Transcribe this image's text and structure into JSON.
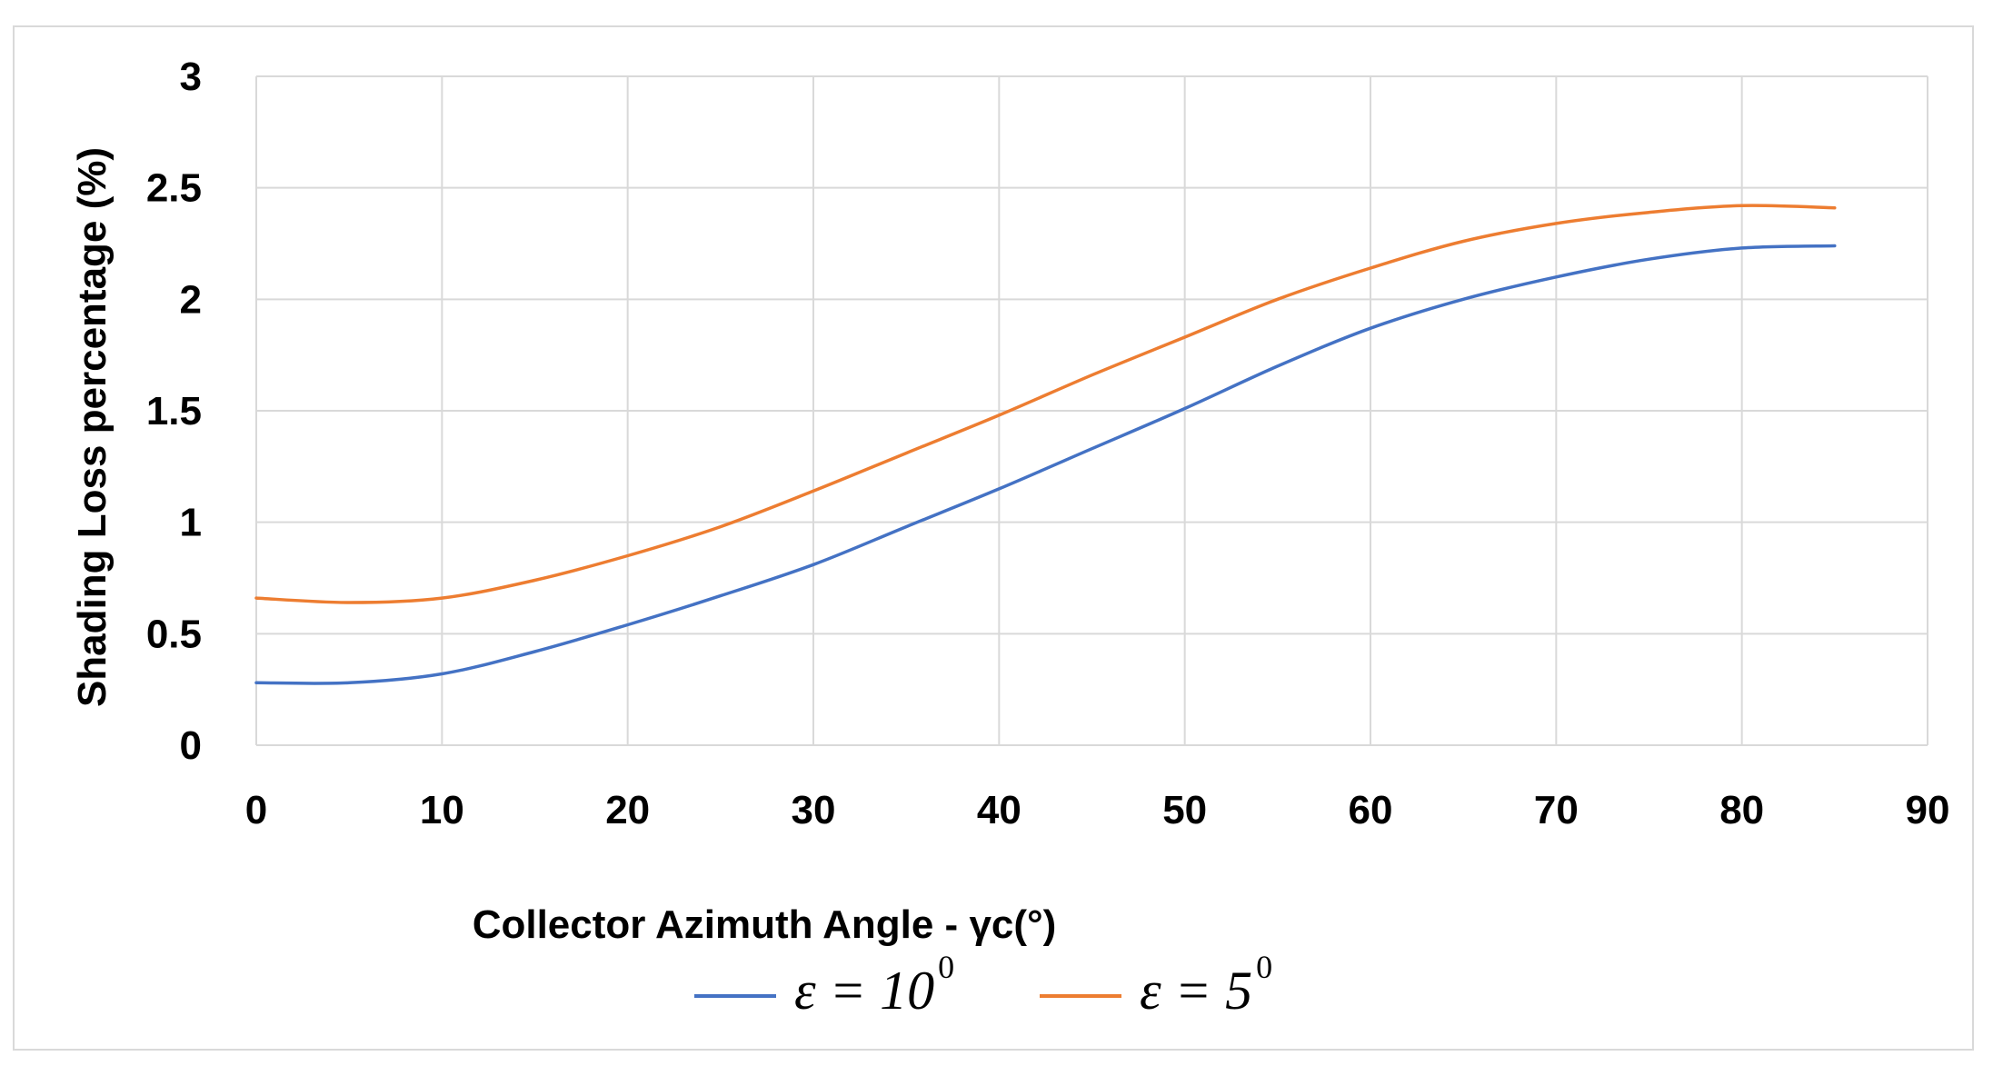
{
  "chart_data": {
    "type": "line",
    "title": "",
    "xlabel": "Collector Azimuth Angle - γc(°)",
    "ylabel": "Shading Loss percentage (%)",
    "xlim": [
      0,
      90
    ],
    "ylim": [
      0,
      3
    ],
    "x_ticks": [
      "0",
      "10",
      "20",
      "30",
      "40",
      "50",
      "60",
      "70",
      "80",
      "90"
    ],
    "y_ticks": [
      "0",
      "0.5",
      "1",
      "1.5",
      "2",
      "2.5",
      "3"
    ],
    "grid": true,
    "legend_position": "bottom",
    "x": [
      0,
      5,
      10,
      15,
      20,
      25,
      30,
      35,
      40,
      45,
      50,
      55,
      60,
      65,
      70,
      75,
      80,
      85
    ],
    "series": [
      {
        "name": "ε = 10⁰",
        "legend_main": "ε = 10",
        "legend_sup": "0",
        "color": "#4472c4",
        "values": [
          0.28,
          0.28,
          0.32,
          0.42,
          0.54,
          0.67,
          0.81,
          0.98,
          1.15,
          1.33,
          1.51,
          1.7,
          1.87,
          2.0,
          2.1,
          2.18,
          2.23,
          2.24
        ]
      },
      {
        "name": "ε = 5⁰",
        "legend_main": "ε = 5",
        "legend_sup": "0",
        "color": "#ed7d31",
        "values": [
          0.66,
          0.64,
          0.66,
          0.74,
          0.85,
          0.98,
          1.14,
          1.31,
          1.48,
          1.66,
          1.83,
          2.0,
          2.14,
          2.26,
          2.34,
          2.39,
          2.42,
          2.41
        ]
      }
    ]
  }
}
